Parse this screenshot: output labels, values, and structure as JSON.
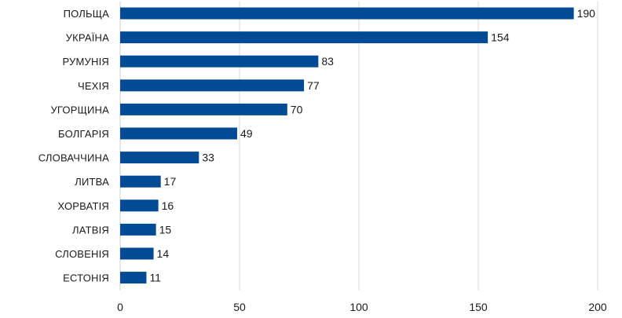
{
  "chart_data": {
    "type": "bar",
    "orientation": "horizontal",
    "categories": [
      "ПОЛЬЩА",
      "УКРАЇНА",
      "РУМУНІЯ",
      "ЧЕХІЯ",
      "УГОРЩИНА",
      "БОЛГАРІЯ",
      "СЛОВАЧЧИНА",
      "ЛИТВА",
      "ХОРВАТІЯ",
      "ЛАТВІЯ",
      "СЛОВЕНІЯ",
      "ЕСТОНІЯ"
    ],
    "values": [
      190,
      154,
      83,
      77,
      70,
      49,
      33,
      17,
      16,
      15,
      14,
      11
    ],
    "value_labels": [
      "190",
      "154",
      "83",
      "77",
      "70",
      "49",
      "33",
      "17",
      "16",
      "15",
      "14",
      "11"
    ],
    "xlim": [
      0,
      200
    ],
    "xticks": [
      0,
      50,
      100,
      150,
      200
    ],
    "xtick_labels": [
      "0",
      "50",
      "100",
      "150",
      "200"
    ],
    "title": "",
    "xlabel": "",
    "ylabel": "",
    "grid": "vertical",
    "legend": "none",
    "bar_color": "#004b93"
  }
}
